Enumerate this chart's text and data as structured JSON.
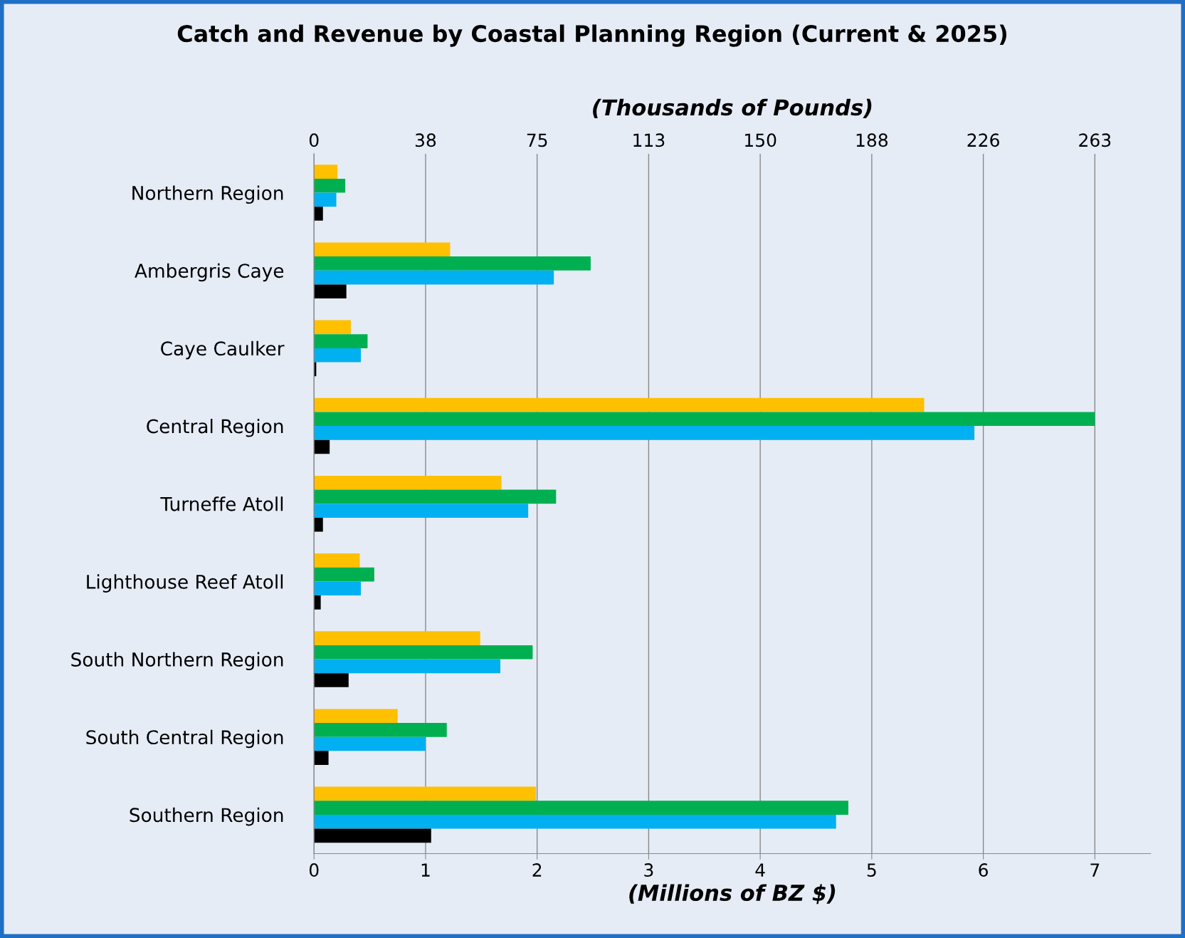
{
  "chart_data": {
    "type": "bar",
    "orientation": "horizontal",
    "title": "Catch and Revenue by Coastal Planning Region (Current & 2025)",
    "x2label": "(Thousands of Pounds)",
    "xlabel": "(Millions of BZ $)",
    "categories": [
      "Northern Region",
      "Ambergris Caye",
      "Caye Caulker",
      "Central Region",
      "Turneffe Atoll",
      "Lighthouse Reef Atoll",
      "South Northern Region",
      "South Central Region",
      "Southern Region"
    ],
    "series": [
      {
        "color": "#ffc000",
        "values": [
          0.21,
          1.22,
          0.33,
          5.47,
          1.68,
          0.41,
          1.49,
          0.75,
          1.99
        ]
      },
      {
        "color": "#00b050",
        "values": [
          0.28,
          2.48,
          0.48,
          7.0,
          2.17,
          0.54,
          1.96,
          1.19,
          4.79
        ]
      },
      {
        "color": "#00b0f0",
        "values": [
          0.2,
          2.15,
          0.42,
          5.92,
          1.92,
          0.42,
          1.67,
          1.0,
          4.68
        ]
      },
      {
        "color": "#000000",
        "values": [
          0.08,
          0.29,
          0.02,
          0.14,
          0.08,
          0.06,
          0.31,
          0.13,
          1.05
        ]
      }
    ],
    "xlim": [
      0,
      7.5
    ],
    "xticks": [
      0,
      1,
      2,
      3,
      4,
      5,
      6,
      7
    ],
    "x2lim": [
      0,
      282
    ],
    "x2ticks": [
      0,
      {
        "value": 37.6,
        "label": "38"
      },
      {
        "value": 75.2,
        "label": "75"
      },
      {
        "value": 112.8,
        "label": "113"
      },
      {
        "value": 150.4,
        "label": "150"
      },
      188,
      {
        "value": 225.6,
        "label": "226"
      },
      {
        "value": 263.2,
        "label": "263"
      }
    ],
    "grid": "x"
  }
}
